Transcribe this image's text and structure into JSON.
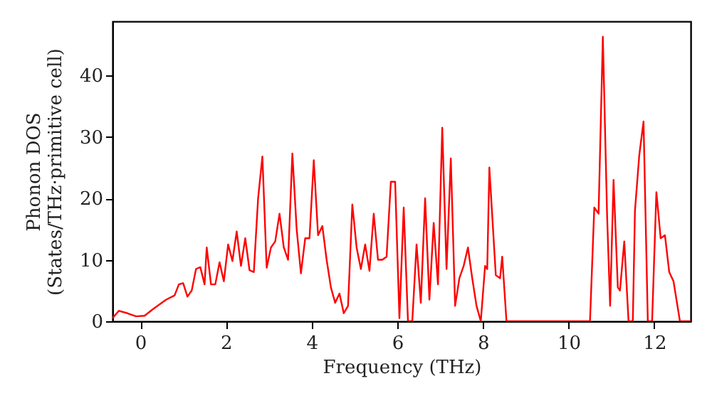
{
  "chart_data": {
    "type": "line",
    "xlabel": "Frequency (THz)",
    "ylabel": "Phonon DOS\n(States/THz·primitive cell)",
    "xlim": [
      -0.65,
      12.85
    ],
    "ylim": [
      0,
      48.8
    ],
    "xticks": [
      0,
      2,
      4,
      6,
      8,
      10,
      12
    ],
    "yticks": [
      0,
      10,
      20,
      30,
      40
    ],
    "grid": false,
    "marker": "none",
    "line_style": "solid",
    "series": [
      {
        "color": "#ff0000",
        "x": [
          -0.65,
          -0.5,
          -0.3,
          -0.1,
          0.1,
          0.3,
          0.6,
          0.8,
          0.9,
          1.0,
          1.1,
          1.2,
          1.3,
          1.4,
          1.5,
          1.55,
          1.65,
          1.75,
          1.85,
          1.95,
          2.05,
          2.15,
          2.25,
          2.35,
          2.45,
          2.55,
          2.65,
          2.75,
          2.85,
          2.95,
          3.05,
          3.15,
          3.25,
          3.35,
          3.45,
          3.55,
          3.65,
          3.75,
          3.85,
          3.95,
          4.05,
          4.15,
          4.25,
          4.35,
          4.45,
          4.55,
          4.65,
          4.75,
          4.85,
          4.95,
          5.05,
          5.15,
          5.25,
          5.35,
          5.45,
          5.55,
          5.65,
          5.75,
          5.85,
          5.95,
          6.05,
          6.15,
          6.25,
          6.35,
          6.45,
          6.55,
          6.65,
          6.75,
          6.85,
          6.95,
          7.05,
          7.15,
          7.25,
          7.35,
          7.45,
          7.55,
          7.65,
          7.75,
          7.85,
          7.95,
          8.05,
          8.1,
          8.15,
          8.3,
          8.4,
          8.45,
          8.55,
          10.5,
          10.6,
          10.7,
          10.8,
          10.9,
          10.97,
          11.05,
          11.15,
          11.2,
          11.3,
          11.4,
          11.5,
          11.55,
          11.65,
          11.75,
          11.85,
          11.95,
          12.05,
          12.15,
          12.25,
          12.35,
          12.45,
          12.6,
          12.85
        ],
        "values": [
          0.5,
          1.7,
          1.3,
          0.8,
          0.9,
          2,
          3.5,
          4.2,
          6,
          6.2,
          4,
          5,
          8.5,
          8.8,
          6,
          12,
          6,
          6,
          9.6,
          6.5,
          12.5,
          9.8,
          14.6,
          9,
          13.5,
          8.3,
          8,
          20,
          26.8,
          8.7,
          12,
          13,
          17.5,
          12,
          10,
          27.3,
          15,
          7.8,
          13.5,
          13.5,
          26.2,
          14,
          15.5,
          10,
          5.5,
          3,
          4.5,
          1.3,
          2.5,
          19,
          12,
          8.5,
          12.5,
          8.2,
          17.5,
          10,
          10,
          10.5,
          22.7,
          22.7,
          0.5,
          18.5,
          0,
          0,
          12.5,
          3,
          20,
          3.5,
          16,
          6,
          31.5,
          8.5,
          26.5,
          2.5,
          7,
          9,
          12,
          7,
          2.5,
          0,
          9,
          8.5,
          25,
          7.5,
          7,
          10.5,
          0,
          0,
          18.5,
          17.5,
          46.3,
          17,
          2.5,
          23,
          5.5,
          5,
          13,
          0,
          0,
          18,
          27,
          32.5,
          0,
          0,
          21,
          13.5,
          14,
          8,
          6.5,
          0,
          0
        ]
      }
    ]
  }
}
